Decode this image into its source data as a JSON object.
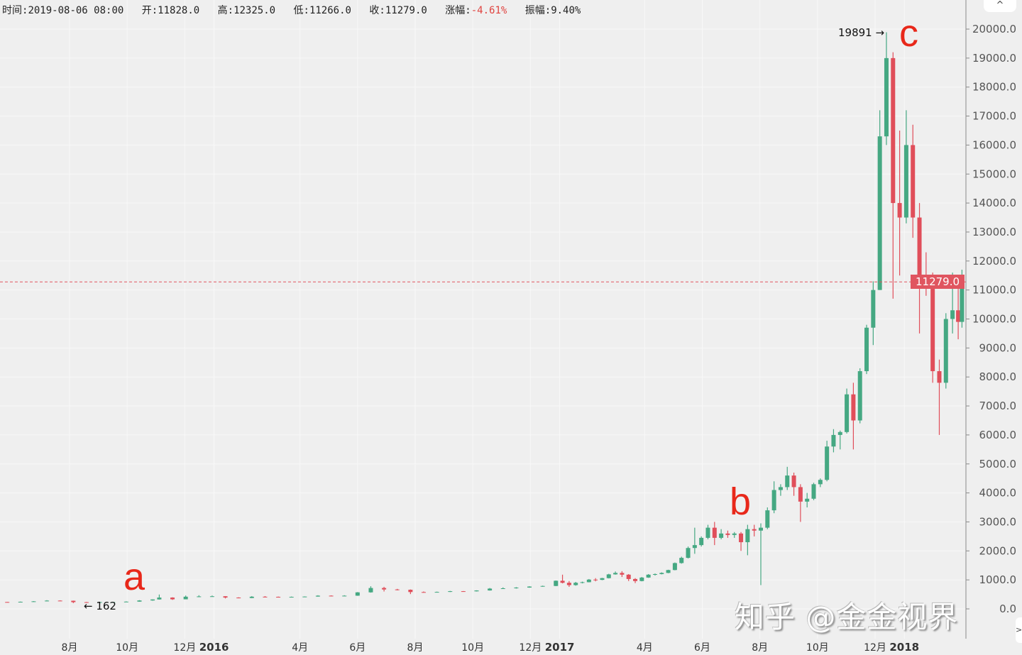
{
  "header": {
    "time_label": "时间:",
    "time": "2019-08-06 08:00",
    "open_label": "开:",
    "open": "11828.0",
    "high_label": "高:",
    "high": "12325.0",
    "low_label": "低:",
    "low": "11266.0",
    "close_label": "收:",
    "close": "11279.0",
    "change_label": "涨幅:",
    "change": "-4.61%",
    "amplitude_label": "振幅:",
    "amplitude": "9.40%"
  },
  "chart_data": {
    "type": "candlestick",
    "ylim": [
      0,
      20000
    ],
    "y_ticks": [
      "0.0",
      "1000.0",
      "2000.0",
      "3000.0",
      "4000.0",
      "5000.0",
      "6000.0",
      "7000.0",
      "8000.0",
      "9000.0",
      "10000.0",
      "11000.0",
      "12000.0",
      "13000.0",
      "14000.0",
      "15000.0",
      "16000.0",
      "17000.0",
      "18000.0",
      "19000.0",
      "20000.0"
    ],
    "x_ticks": [
      {
        "date": "2015-08-01",
        "label": "8月",
        "bold": false
      },
      {
        "date": "2015-10-01",
        "label": "10月",
        "bold": false
      },
      {
        "date": "2015-12-01",
        "label": "12月",
        "bold": false
      },
      {
        "date": "2016-01-01",
        "label": "2016",
        "bold": true
      },
      {
        "date": "2016-04-01",
        "label": "4月",
        "bold": false
      },
      {
        "date": "2016-06-01",
        "label": "6月",
        "bold": false
      },
      {
        "date": "2016-08-01",
        "label": "8月",
        "bold": false
      },
      {
        "date": "2016-10-01",
        "label": "10月",
        "bold": false
      },
      {
        "date": "2016-12-01",
        "label": "12月",
        "bold": false
      },
      {
        "date": "2017-01-01",
        "label": "2017",
        "bold": true
      },
      {
        "date": "2017-04-01",
        "label": "4月",
        "bold": false
      },
      {
        "date": "2017-06-01",
        "label": "6月",
        "bold": false
      },
      {
        "date": "2017-08-01",
        "label": "8月",
        "bold": false
      },
      {
        "date": "2017-10-01",
        "label": "10月",
        "bold": false
      },
      {
        "date": "2017-12-01",
        "label": "12月",
        "bold": false
      },
      {
        "date": "2018-01-01",
        "label": "2018",
        "bold": true
      }
    ],
    "grid": true,
    "up_color": "#45a882",
    "down_color": "#e04e5a",
    "current_price": "11279.0",
    "current_price_value": 11279,
    "current_price_color": "#e05560",
    "max_marker": "19891 →",
    "min_marker": "← 162",
    "candles": [
      [
        "2015-05-27",
        237,
        240,
        226,
        230
      ],
      [
        "2015-06-10",
        230,
        252,
        224,
        245
      ],
      [
        "2015-06-24",
        245,
        268,
        240,
        260
      ],
      [
        "2015-07-08",
        260,
        300,
        258,
        285
      ],
      [
        "2015-07-22",
        285,
        295,
        270,
        280
      ],
      [
        "2015-08-05",
        280,
        285,
        198,
        232
      ],
      [
        "2015-08-19",
        232,
        240,
        210,
        228
      ],
      [
        "2015-09-02",
        228,
        245,
        162,
        235
      ],
      [
        "2015-09-16",
        235,
        240,
        224,
        236
      ],
      [
        "2015-09-30",
        236,
        260,
        234,
        250
      ],
      [
        "2015-10-14",
        250,
        300,
        248,
        290
      ],
      [
        "2015-10-28",
        290,
        330,
        280,
        325
      ],
      [
        "2015-11-04",
        325,
        495,
        320,
        390
      ],
      [
        "2015-11-18",
        390,
        400,
        310,
        330
      ],
      [
        "2015-12-02",
        330,
        460,
        330,
        420
      ],
      [
        "2015-12-16",
        420,
        470,
        405,
        430
      ],
      [
        "2015-12-30",
        430,
        460,
        420,
        435
      ],
      [
        "2016-01-13",
        435,
        440,
        360,
        390
      ],
      [
        "2016-01-27",
        390,
        400,
        365,
        375
      ],
      [
        "2016-02-10",
        375,
        440,
        370,
        420
      ],
      [
        "2016-02-24",
        420,
        440,
        400,
        415
      ],
      [
        "2016-03-09",
        415,
        425,
        400,
        410
      ],
      [
        "2016-03-23",
        410,
        425,
        405,
        415
      ],
      [
        "2016-04-06",
        415,
        430,
        410,
        425
      ],
      [
        "2016-04-20",
        425,
        470,
        420,
        455
      ],
      [
        "2016-05-04",
        455,
        465,
        440,
        450
      ],
      [
        "2016-05-18",
        450,
        470,
        440,
        455
      ],
      [
        "2016-06-01",
        455,
        580,
        450,
        570
      ],
      [
        "2016-06-15",
        570,
        780,
        560,
        720
      ],
      [
        "2016-06-29",
        720,
        760,
        600,
        670
      ],
      [
        "2016-07-13",
        670,
        690,
        640,
        660
      ],
      [
        "2016-07-27",
        660,
        670,
        510,
        580
      ],
      [
        "2016-08-10",
        580,
        600,
        560,
        575
      ],
      [
        "2016-08-24",
        575,
        595,
        565,
        585
      ],
      [
        "2016-09-07",
        585,
        620,
        580,
        610
      ],
      [
        "2016-09-21",
        610,
        615,
        595,
        605
      ],
      [
        "2016-10-05",
        605,
        640,
        600,
        635
      ],
      [
        "2016-10-19",
        635,
        720,
        630,
        700
      ],
      [
        "2016-11-02",
        700,
        740,
        690,
        710
      ],
      [
        "2016-11-16",
        710,
        750,
        700,
        735
      ],
      [
        "2016-11-30",
        735,
        780,
        730,
        770
      ],
      [
        "2016-12-14",
        770,
        800,
        765,
        790
      ],
      [
        "2016-12-28",
        790,
        980,
        785,
        970
      ],
      [
        "2017-01-04",
        970,
        1180,
        880,
        900
      ],
      [
        "2017-01-11",
        900,
        960,
        760,
        820
      ],
      [
        "2017-01-18",
        820,
        930,
        800,
        900
      ],
      [
        "2017-01-25",
        900,
        940,
        880,
        920
      ],
      [
        "2017-02-01",
        920,
        1030,
        915,
        1010
      ],
      [
        "2017-02-08",
        1010,
        1060,
        950,
        1000
      ],
      [
        "2017-02-15",
        1000,
        1070,
        990,
        1060
      ],
      [
        "2017-02-22",
        1060,
        1210,
        1050,
        1190
      ],
      [
        "2017-03-01",
        1190,
        1290,
        1180,
        1240
      ],
      [
        "2017-03-08",
        1240,
        1300,
        1100,
        1180
      ],
      [
        "2017-03-15",
        1180,
        1200,
        960,
        1030
      ],
      [
        "2017-03-22",
        1030,
        1060,
        890,
        960
      ],
      [
        "2017-03-29",
        960,
        1100,
        950,
        1080
      ],
      [
        "2017-04-05",
        1080,
        1200,
        1070,
        1180
      ],
      [
        "2017-04-12",
        1180,
        1220,
        1150,
        1200
      ],
      [
        "2017-04-19",
        1200,
        1260,
        1190,
        1240
      ],
      [
        "2017-04-26",
        1240,
        1350,
        1230,
        1340
      ],
      [
        "2017-05-03",
        1340,
        1600,
        1330,
        1580
      ],
      [
        "2017-05-10",
        1580,
        1800,
        1560,
        1760
      ],
      [
        "2017-05-17",
        1760,
        2150,
        1740,
        2100
      ],
      [
        "2017-05-24",
        2100,
        2800,
        1900,
        2200
      ],
      [
        "2017-05-31",
        2200,
        2500,
        2150,
        2450
      ],
      [
        "2017-06-07",
        2450,
        2900,
        2400,
        2800
      ],
      [
        "2017-06-14",
        2800,
        3000,
        2200,
        2450
      ],
      [
        "2017-06-21",
        2450,
        2750,
        2400,
        2600
      ],
      [
        "2017-06-28",
        2600,
        2700,
        2450,
        2550
      ],
      [
        "2017-07-05",
        2550,
        2650,
        2450,
        2600
      ],
      [
        "2017-07-12",
        2600,
        2650,
        2000,
        2300
      ],
      [
        "2017-07-19",
        2300,
        2900,
        1850,
        2750
      ],
      [
        "2017-07-26",
        2750,
        2900,
        2500,
        2700
      ],
      [
        "2017-08-02",
        2700,
        2950,
        820,
        2800
      ],
      [
        "2017-08-09",
        2800,
        3500,
        2750,
        3400
      ],
      [
        "2017-08-16",
        3400,
        4400,
        3300,
        4100
      ],
      [
        "2017-08-23",
        4100,
        4300,
        3900,
        4200
      ],
      [
        "2017-08-30",
        4200,
        4900,
        4100,
        4600
      ],
      [
        "2017-09-06",
        4600,
        4700,
        3900,
        4200
      ],
      [
        "2017-09-13",
        4200,
        4300,
        3000,
        3700
      ],
      [
        "2017-09-20",
        3700,
        4000,
        3500,
        3800
      ],
      [
        "2017-09-27",
        3800,
        4350,
        3750,
        4300
      ],
      [
        "2017-10-04",
        4300,
        4500,
        4200,
        4450
      ],
      [
        "2017-10-11",
        4450,
        5800,
        4400,
        5600
      ],
      [
        "2017-10-18",
        5600,
        6200,
        5400,
        6000
      ],
      [
        "2017-10-25",
        6000,
        6150,
        5500,
        6100
      ],
      [
        "2017-11-01",
        6100,
        7600,
        6050,
        7400
      ],
      [
        "2017-11-08",
        7400,
        7800,
        5500,
        6500
      ],
      [
        "2017-11-15",
        6500,
        8300,
        6400,
        8200
      ],
      [
        "2017-11-22",
        8200,
        9800,
        8100,
        9700
      ],
      [
        "2017-11-29",
        9700,
        11300,
        9100,
        11000
      ],
      [
        "2017-12-06",
        11000,
        17200,
        11000,
        16300
      ],
      [
        "2017-12-13",
        16300,
        19891,
        16000,
        19000
      ],
      [
        "2017-12-20",
        19000,
        19200,
        10700,
        14000
      ],
      [
        "2017-12-27",
        14000,
        16500,
        11500,
        13500
      ],
      [
        "2018-01-03",
        13500,
        17200,
        13300,
        16000
      ],
      [
        "2018-01-10",
        16000,
        16700,
        12800,
        13500
      ],
      [
        "2018-01-17",
        13500,
        14000,
        9500,
        11500
      ],
      [
        "2018-01-24",
        11500,
        12300,
        10800,
        11200
      ],
      [
        "2018-01-31",
        11200,
        11600,
        7800,
        8200
      ],
      [
        "2018-02-07",
        8200,
        8600,
        6000,
        7800
      ],
      [
        "2018-02-14",
        7800,
        10200,
        7600,
        10000
      ],
      [
        "2018-02-21",
        10000,
        11600,
        9500,
        10300
      ],
      [
        "2018-02-27",
        10300,
        11200,
        9300,
        9900
      ],
      [
        "2018-03-03",
        9900,
        11700,
        9700,
        11279
      ]
    ]
  },
  "annotations": {
    "a": "a",
    "b": "b",
    "c": "c"
  },
  "controls": {
    "scroll_up": "^",
    "side_toggle": ">"
  },
  "watermark": "知乎 @金金视界"
}
